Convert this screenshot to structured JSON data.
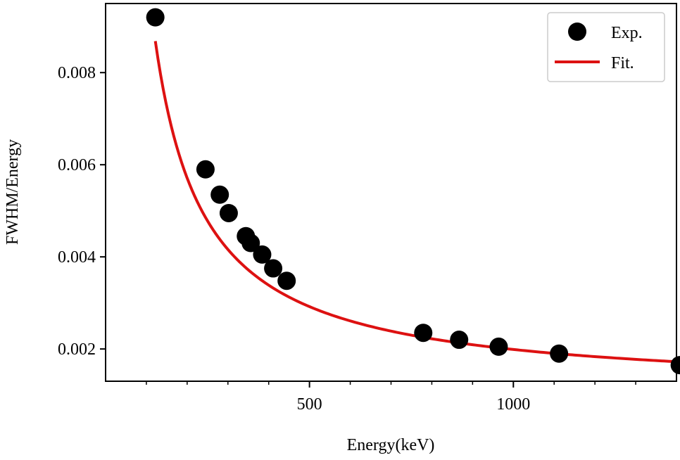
{
  "chart_data": {
    "type": "scatter",
    "title": "",
    "xlabel": "Energy(keV)",
    "ylabel": "FWHM/Energy",
    "xlim": [
      0,
      1400
    ],
    "ylim": [
      0.0013,
      0.0095
    ],
    "x_major_ticks": [
      500,
      1000
    ],
    "x_minor_step": 100,
    "y_ticks": [
      0.002,
      0.004,
      0.006,
      0.008
    ],
    "x_tick_labels": [
      "500",
      "1000"
    ],
    "y_tick_labels": [
      "0.002",
      "0.004",
      "0.006",
      "0.008"
    ],
    "legend_position": "top-right",
    "series": [
      {
        "name": "Exp.",
        "kind": "scatter",
        "color": "#000000",
        "x": [
          122,
          245,
          280,
          302,
          344,
          356,
          384,
          411,
          444,
          779,
          867,
          964,
          1112,
          1408
        ],
        "y": [
          0.0092,
          0.0059,
          0.00535,
          0.00495,
          0.00445,
          0.0043,
          0.00405,
          0.00375,
          0.00348,
          0.00235,
          0.0022,
          0.00205,
          0.0019,
          0.00165
        ]
      },
      {
        "name": "Fit.",
        "kind": "line",
        "color": "#dd1111",
        "model": "y = a / x + c",
        "params": {
          "a": 0.9303,
          "c": 0.001059
        },
        "x_range": [
          122,
          1408
        ]
      }
    ]
  }
}
